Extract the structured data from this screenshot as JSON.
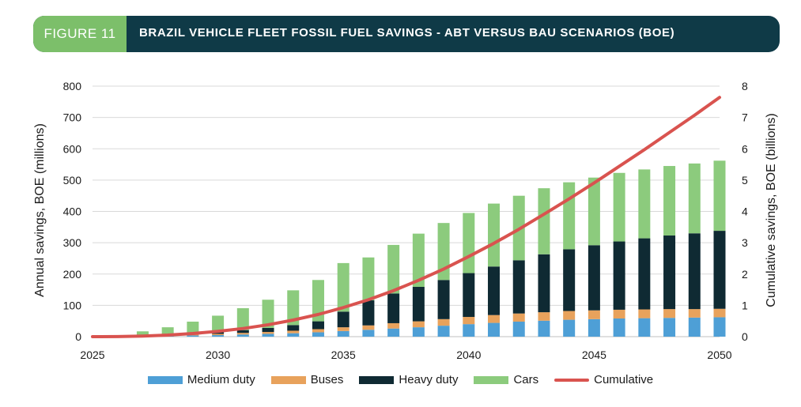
{
  "header": {
    "tag": "FIGURE 11",
    "title": "BRAZIL VEHICLE FLEET FOSSIL FUEL SAVINGS - ABT VERSUS BAU SCENARIOS (BOE)"
  },
  "colors": {
    "medium_duty": "#4e9fd6",
    "buses": "#e8a25c",
    "heavy_duty": "#0f2a33",
    "cars": "#8ccb7d",
    "cumulative": "#d9534f",
    "banner": "#0f3a47",
    "tag": "#7cbf6a"
  },
  "chart_data": {
    "type": "bar",
    "title": "BRAZIL VEHICLE FLEET FOSSIL FUEL SAVINGS - ABT VERSUS BAU SCENARIOS (BOE)",
    "ylabel": "Annual savings, BOE (millions)",
    "y2label": "Cumulative savings, BOE (billions)",
    "ylim": [
      0,
      800
    ],
    "y2lim": [
      0,
      8
    ],
    "yticks": [
      "0",
      "100",
      "200",
      "300",
      "400",
      "500",
      "600",
      "700",
      "800"
    ],
    "y2ticks": [
      "0",
      "1",
      "2",
      "3",
      "4",
      "5",
      "6",
      "7",
      "8"
    ],
    "xticks": [
      "2025",
      "2030",
      "2035",
      "2040",
      "2045",
      "2050"
    ],
    "stacked": true,
    "categories": [
      "2025",
      "2026",
      "2027",
      "2028",
      "2029",
      "2030",
      "2031",
      "2032",
      "2033",
      "2034",
      "2035",
      "2036",
      "2037",
      "2038",
      "2039",
      "2040",
      "2041",
      "2042",
      "2043",
      "2044",
      "2045",
      "2046",
      "2047",
      "2048",
      "2049",
      "2050"
    ],
    "series": [
      {
        "name": "Medium duty",
        "values": [
          0,
          1,
          2,
          3,
          4,
          5,
          7,
          9,
          11,
          14,
          18,
          22,
          26,
          30,
          35,
          40,
          44,
          48,
          51,
          54,
          56,
          58,
          59,
          60,
          61,
          62
        ]
      },
      {
        "name": "Buses",
        "values": [
          0,
          0,
          1,
          2,
          3,
          4,
          5,
          6,
          8,
          10,
          12,
          14,
          17,
          19,
          21,
          23,
          25,
          26,
          27,
          28,
          28,
          28,
          28,
          28,
          27,
          27
        ]
      },
      {
        "name": "Heavy duty",
        "values": [
          0,
          0,
          1,
          2,
          3,
          5,
          9,
          13,
          18,
          25,
          50,
          80,
          95,
          110,
          125,
          140,
          155,
          170,
          185,
          197,
          208,
          218,
          227,
          235,
          242,
          249
        ]
      },
      {
        "name": "Cars",
        "values": [
          0,
          3,
          13,
          23,
          38,
          53,
          70,
          90,
          111,
          132,
          155,
          137,
          155,
          170,
          182,
          192,
          201,
          206,
          211,
          214,
          216,
          219,
          220,
          222,
          223,
          224
        ]
      },
      {
        "name": "Cumulative",
        "type": "line",
        "axis": "right",
        "values": [
          0.0,
          0.003,
          0.02,
          0.05,
          0.1,
          0.17,
          0.26,
          0.38,
          0.53,
          0.71,
          0.93,
          1.18,
          1.47,
          1.8,
          2.16,
          2.56,
          2.98,
          3.43,
          3.91,
          4.4,
          4.91,
          5.44,
          5.97,
          6.52,
          7.07,
          7.64
        ]
      }
    ],
    "grid": "horizontal",
    "legend": "bottom"
  }
}
